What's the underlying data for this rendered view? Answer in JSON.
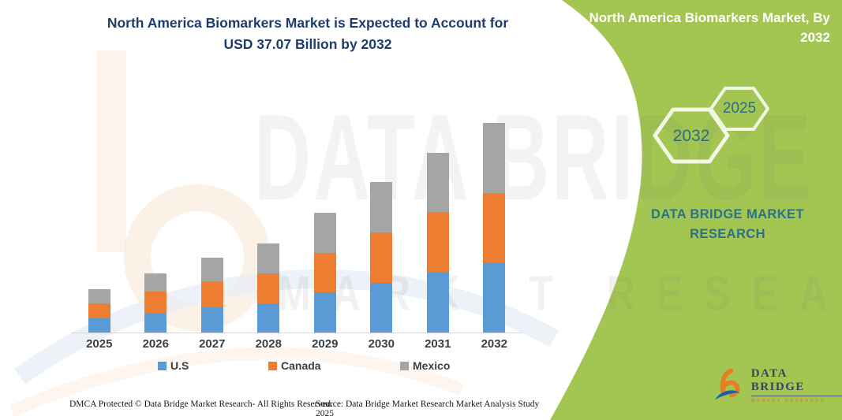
{
  "header": {
    "title_line1": "North America Biomarkers Market is Expected to Account for",
    "title_line2": "USD 37.07 Billion by 2032"
  },
  "side_panel": {
    "title_line1": "North America Biomarkers Market, By",
    "title_line2": "2032",
    "hexagon_back_label": "2032",
    "hexagon_front_label": "2025",
    "brand_text": "DATA BRIDGE MARKET RESEARCH",
    "logo_name": "DATA BRIDGE",
    "logo_tagline": "MARKET RESEARCH",
    "bg_color": "#A3C653",
    "brand_text_color": "#2E7086"
  },
  "watermark": {
    "line1": "DATA BRIDGE",
    "line2": "MARKET RESEARCH"
  },
  "footer": {
    "dmca": "DMCA Protected © Data Bridge Market Research-  All Rights Reserved.",
    "source": "Source: Data Bridge Market Research  Market Analysis Study 2025"
  },
  "chart_data": {
    "type": "bar",
    "stacked": true,
    "title": "North America Biomarkers Market is Expected to Account for USD 37.07 Billion by 2032",
    "unit": "USD Billion",
    "categories": [
      "2025",
      "2026",
      "2027",
      "2028",
      "2029",
      "2030",
      "2031",
      "2032"
    ],
    "series": [
      {
        "name": "U.S",
        "color": "#5B9BD5",
        "values": [
          2.5,
          3.5,
          4.5,
          5.2,
          7.1,
          8.8,
          10.6,
          12.4
        ]
      },
      {
        "name": "Canada",
        "color": "#ED7D31",
        "values": [
          2.6,
          3.8,
          4.5,
          5.3,
          7.0,
          8.9,
          10.7,
          12.3
        ]
      },
      {
        "name": "Mexico",
        "color": "#A5A5A5",
        "values": [
          2.6,
          3.2,
          4.3,
          5.3,
          7.1,
          8.9,
          10.4,
          12.4
        ]
      }
    ],
    "totals": [
      7.7,
      10.5,
      13.3,
      15.8,
      21.2,
      26.6,
      31.7,
      37.07
    ],
    "highlight_total": {
      "year": "2032",
      "value": 37.07
    },
    "ylim": [
      0,
      40
    ],
    "grid": false,
    "y_axis_visible": false,
    "legend_position": "bottom"
  }
}
